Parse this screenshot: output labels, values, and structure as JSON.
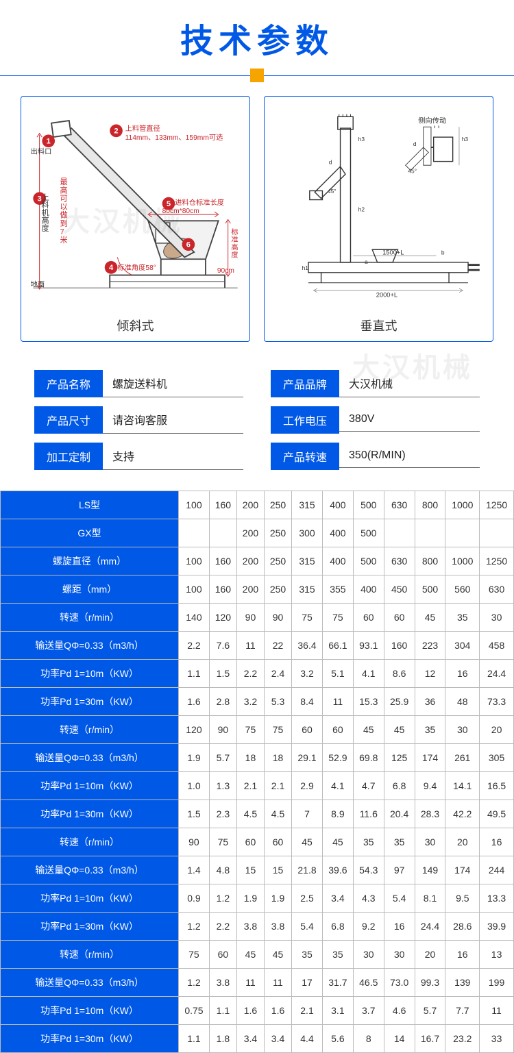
{
  "title": {
    "text": "技术参数",
    "color": "#0058e7"
  },
  "divider": {
    "line_color": "#0058e7",
    "square_color": "#f6a500"
  },
  "diagrams": {
    "left": {
      "caption": "倾斜式",
      "annotations": {
        "outlet": "出料口",
        "tube_diameter_label": "上料管直径",
        "tube_diameter_values": "114mm、133mm、159mm可选",
        "height_label": "上料机高度",
        "height_note_1": "最高可以做到7米",
        "angle": "标准角度58°",
        "hopper_label": "进料仓标准长度",
        "hopper_size": "80cm*80cm",
        "std_height_label": "标准高度",
        "std_height_value": "90cm",
        "ground": "地面"
      }
    },
    "right": {
      "caption": "垂直式",
      "annotations": {
        "side_drive": "侧向传动",
        "dim_1500": "1500+L",
        "dim_2000": "2000+L",
        "angle_45": "45°"
      }
    }
  },
  "info": [
    {
      "label": "产品名称",
      "value": "螺旋送料机"
    },
    {
      "label": "产品品牌",
      "value": "大汉机械"
    },
    {
      "label": "产品尺寸",
      "value": "请咨询客服"
    },
    {
      "label": "工作电压",
      "value": "380V"
    },
    {
      "label": "加工定制",
      "value": "支持"
    },
    {
      "label": "产品转速",
      "value": "350(R/MIN)"
    }
  ],
  "spec_table": {
    "header_bg": "#0058e7",
    "header_fg": "#ffffff",
    "rows": [
      {
        "label": "LS型",
        "cells": [
          "100",
          "160",
          "200",
          "250",
          "315",
          "400",
          "500",
          "630",
          "800",
          "1000",
          "1250"
        ]
      },
      {
        "label": "GX型",
        "cells": [
          "",
          "",
          "200",
          "250",
          "300",
          "400",
          "500",
          "",
          "",
          "",
          ""
        ]
      },
      {
        "label": "螺旋直径（mm）",
        "cells": [
          "100",
          "160",
          "200",
          "250",
          "315",
          "400",
          "500",
          "630",
          "800",
          "1000",
          "1250"
        ]
      },
      {
        "label": "螺距（mm）",
        "cells": [
          "100",
          "160",
          "200",
          "250",
          "315",
          "355",
          "400",
          "450",
          "500",
          "560",
          "630"
        ]
      },
      {
        "label": "转速（r/min）",
        "cells": [
          "140",
          "120",
          "90",
          "90",
          "75",
          "75",
          "60",
          "60",
          "45",
          "35",
          "30"
        ]
      },
      {
        "label": "输送量QΦ=0.33（m3/h）",
        "cells": [
          "2.2",
          "7.6",
          "11",
          "22",
          "36.4",
          "66.1",
          "93.1",
          "160",
          "223",
          "304",
          "458"
        ]
      },
      {
        "label": "功率Pd 1=10m（KW）",
        "cells": [
          "1.1",
          "1.5",
          "2.2",
          "2.4",
          "3.2",
          "5.1",
          "4.1",
          "8.6",
          "12",
          "16",
          "24.4"
        ]
      },
      {
        "label": "功率Pd 1=30m（KW）",
        "cells": [
          "1.6",
          "2.8",
          "3.2",
          "5.3",
          "8.4",
          "11",
          "15.3",
          "25.9",
          "36",
          "48",
          "73.3"
        ]
      },
      {
        "label": "转速（r/min）",
        "cells": [
          "120",
          "90",
          "75",
          "75",
          "60",
          "60",
          "45",
          "45",
          "35",
          "30",
          "20"
        ]
      },
      {
        "label": "输送量QΦ=0.33（m3/h）",
        "cells": [
          "1.9",
          "5.7",
          "18",
          "18",
          "29.1",
          "52.9",
          "69.8",
          "125",
          "174",
          "261",
          "305"
        ]
      },
      {
        "label": "功率Pd 1=10m（KW）",
        "cells": [
          "1.0",
          "1.3",
          "2.1",
          "2.1",
          "2.9",
          "4.1",
          "4.7",
          "6.8",
          "9.4",
          "14.1",
          "16.5"
        ]
      },
      {
        "label": "功率Pd 1=30m（KW）",
        "cells": [
          "1.5",
          "2.3",
          "4.5",
          "4.5",
          "7",
          "8.9",
          "11.6",
          "20.4",
          "28.3",
          "42.2",
          "49.5"
        ]
      },
      {
        "label": "转速（r/min）",
        "cells": [
          "90",
          "75",
          "60",
          "60",
          "45",
          "45",
          "35",
          "35",
          "30",
          "20",
          "16"
        ]
      },
      {
        "label": "输送量QΦ=0.33（m3/h）",
        "cells": [
          "1.4",
          "4.8",
          "15",
          "15",
          "21.8",
          "39.6",
          "54.3",
          "97",
          "149",
          "174",
          "244"
        ]
      },
      {
        "label": "功率Pd 1=10m（KW）",
        "cells": [
          "0.9",
          "1.2",
          "1.9",
          "1.9",
          "2.5",
          "3.4",
          "4.3",
          "5.4",
          "8.1",
          "9.5",
          "13.3"
        ]
      },
      {
        "label": "功率Pd 1=30m（KW）",
        "cells": [
          "1.2",
          "2.2",
          "3.8",
          "3.8",
          "5.4",
          "6.8",
          "9.2",
          "16",
          "24.4",
          "28.6",
          "39.9"
        ]
      },
      {
        "label": "转速（r/min）",
        "cells": [
          "75",
          "60",
          "45",
          "45",
          "35",
          "35",
          "30",
          "30",
          "20",
          "16",
          "13"
        ]
      },
      {
        "label": "输送量QΦ=0.33（m3/h）",
        "cells": [
          "1.2",
          "3.8",
          "11",
          "11",
          "17",
          "31.7",
          "46.5",
          "73.0",
          "99.3",
          "139",
          "199"
        ]
      },
      {
        "label": "功率Pd 1=10m（KW）",
        "cells": [
          "0.75",
          "1.1",
          "1.6",
          "1.6",
          "2.1",
          "3.1",
          "3.7",
          "4.6",
          "5.7",
          "7.7",
          "11"
        ]
      },
      {
        "label": "功率Pd 1=30m（KW）",
        "cells": [
          "1.1",
          "1.8",
          "3.4",
          "3.4",
          "4.4",
          "5.6",
          "8",
          "14",
          "16.7",
          "23.2",
          "33"
        ]
      }
    ]
  },
  "watermark": "大汉机械"
}
